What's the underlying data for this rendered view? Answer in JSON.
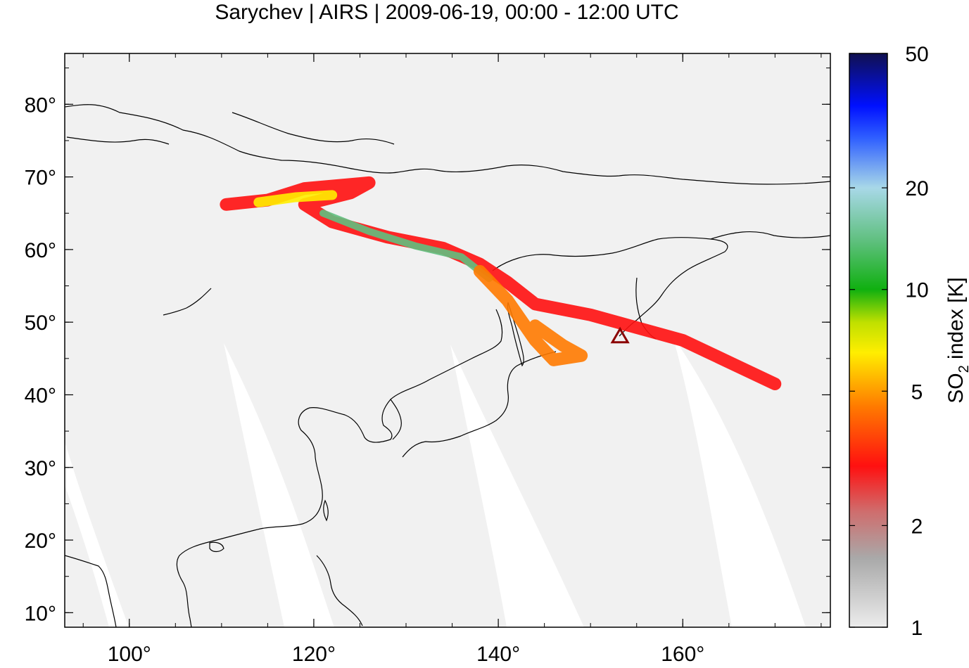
{
  "title": "Sarychev | AIRS | 2009-06-19, 00:00 - 12:00 UTC",
  "map": {
    "lon_range": [
      93,
      176
    ],
    "lat_range": [
      8,
      87
    ],
    "background": "#f1f1f1",
    "swath_gap_color": "#ffffff",
    "coastline_color": "#000000"
  },
  "axes": {
    "x_ticks": [
      {
        "value": 100,
        "label": "100°"
      },
      {
        "value": 120,
        "label": "120°"
      },
      {
        "value": 140,
        "label": "140°"
      },
      {
        "value": 160,
        "label": "160°"
      }
    ],
    "y_ticks": [
      {
        "value": 10,
        "label": "10°"
      },
      {
        "value": 20,
        "label": "20°"
      },
      {
        "value": 30,
        "label": "30°"
      },
      {
        "value": 40,
        "label": "40°"
      },
      {
        "value": 50,
        "label": "50°"
      },
      {
        "value": 60,
        "label": "60°"
      },
      {
        "value": 70,
        "label": "70°"
      },
      {
        "value": 80,
        "label": "80°"
      }
    ]
  },
  "volcano": {
    "name": "Sarychev",
    "lon": 153.2,
    "lat": 48.1,
    "marker": "triangle",
    "color": "#8b0000"
  },
  "colorbar": {
    "label_main": "SO",
    "label_sub": "2",
    "label_rest": " index [K]",
    "scale": "log",
    "range": [
      1,
      50
    ],
    "ticks": [
      {
        "value": 1,
        "label": "1"
      },
      {
        "value": 2,
        "label": "2"
      },
      {
        "value": 5,
        "label": "5"
      },
      {
        "value": 10,
        "label": "10"
      },
      {
        "value": 20,
        "label": "20"
      },
      {
        "value": 50,
        "label": "50"
      }
    ],
    "stops": [
      {
        "value": 1,
        "color": "#ececec"
      },
      {
        "value": 1.6,
        "color": "#a9a9a9"
      },
      {
        "value": 2.2,
        "color": "#cf6d6d"
      },
      {
        "value": 3,
        "color": "#ff1010"
      },
      {
        "value": 4.5,
        "color": "#ff7a00"
      },
      {
        "value": 6.5,
        "color": "#ffee00"
      },
      {
        "value": 8,
        "color": "#bfe000"
      },
      {
        "value": 10,
        "color": "#10b010"
      },
      {
        "value": 14,
        "color": "#60c080"
      },
      {
        "value": 20,
        "color": "#a8d8e8"
      },
      {
        "value": 28,
        "color": "#3060ff"
      },
      {
        "value": 35,
        "color": "#0010ff"
      },
      {
        "value": 50,
        "color": "#101050"
      }
    ]
  },
  "plume": {
    "segments": [
      {
        "points": [
          [
            110.5,
            66.2
          ],
          [
            115,
            66.8
          ],
          [
            119,
            68.4
          ],
          [
            126,
            69.2
          ],
          [
            124,
            67.8
          ],
          [
            119,
            66.2
          ],
          [
            122,
            63.8
          ],
          [
            128,
            61.7
          ],
          [
            134,
            60.2
          ],
          [
            138,
            58
          ],
          [
            141,
            55.5
          ],
          [
            144,
            52.5
          ],
          [
            150,
            51
          ],
          [
            160,
            47.5
          ],
          [
            170,
            41.5
          ]
        ],
        "value": 3
      },
      {
        "points": [
          [
            121,
            65
          ],
          [
            126,
            62.5
          ],
          [
            131,
            60.5
          ],
          [
            136,
            59
          ],
          [
            139,
            56
          ]
        ],
        "value": 12
      },
      {
        "points": [
          [
            114,
            66.5
          ],
          [
            118,
            67.2
          ],
          [
            122,
            67.5
          ]
        ],
        "value": 6
      },
      {
        "points": [
          [
            138,
            57
          ],
          [
            141,
            53
          ],
          [
            144,
            47.5
          ],
          [
            146,
            44.8
          ],
          [
            149,
            45.4
          ],
          [
            147,
            46.8
          ],
          [
            144,
            49.5
          ]
        ],
        "value": 3.5
      }
    ]
  }
}
